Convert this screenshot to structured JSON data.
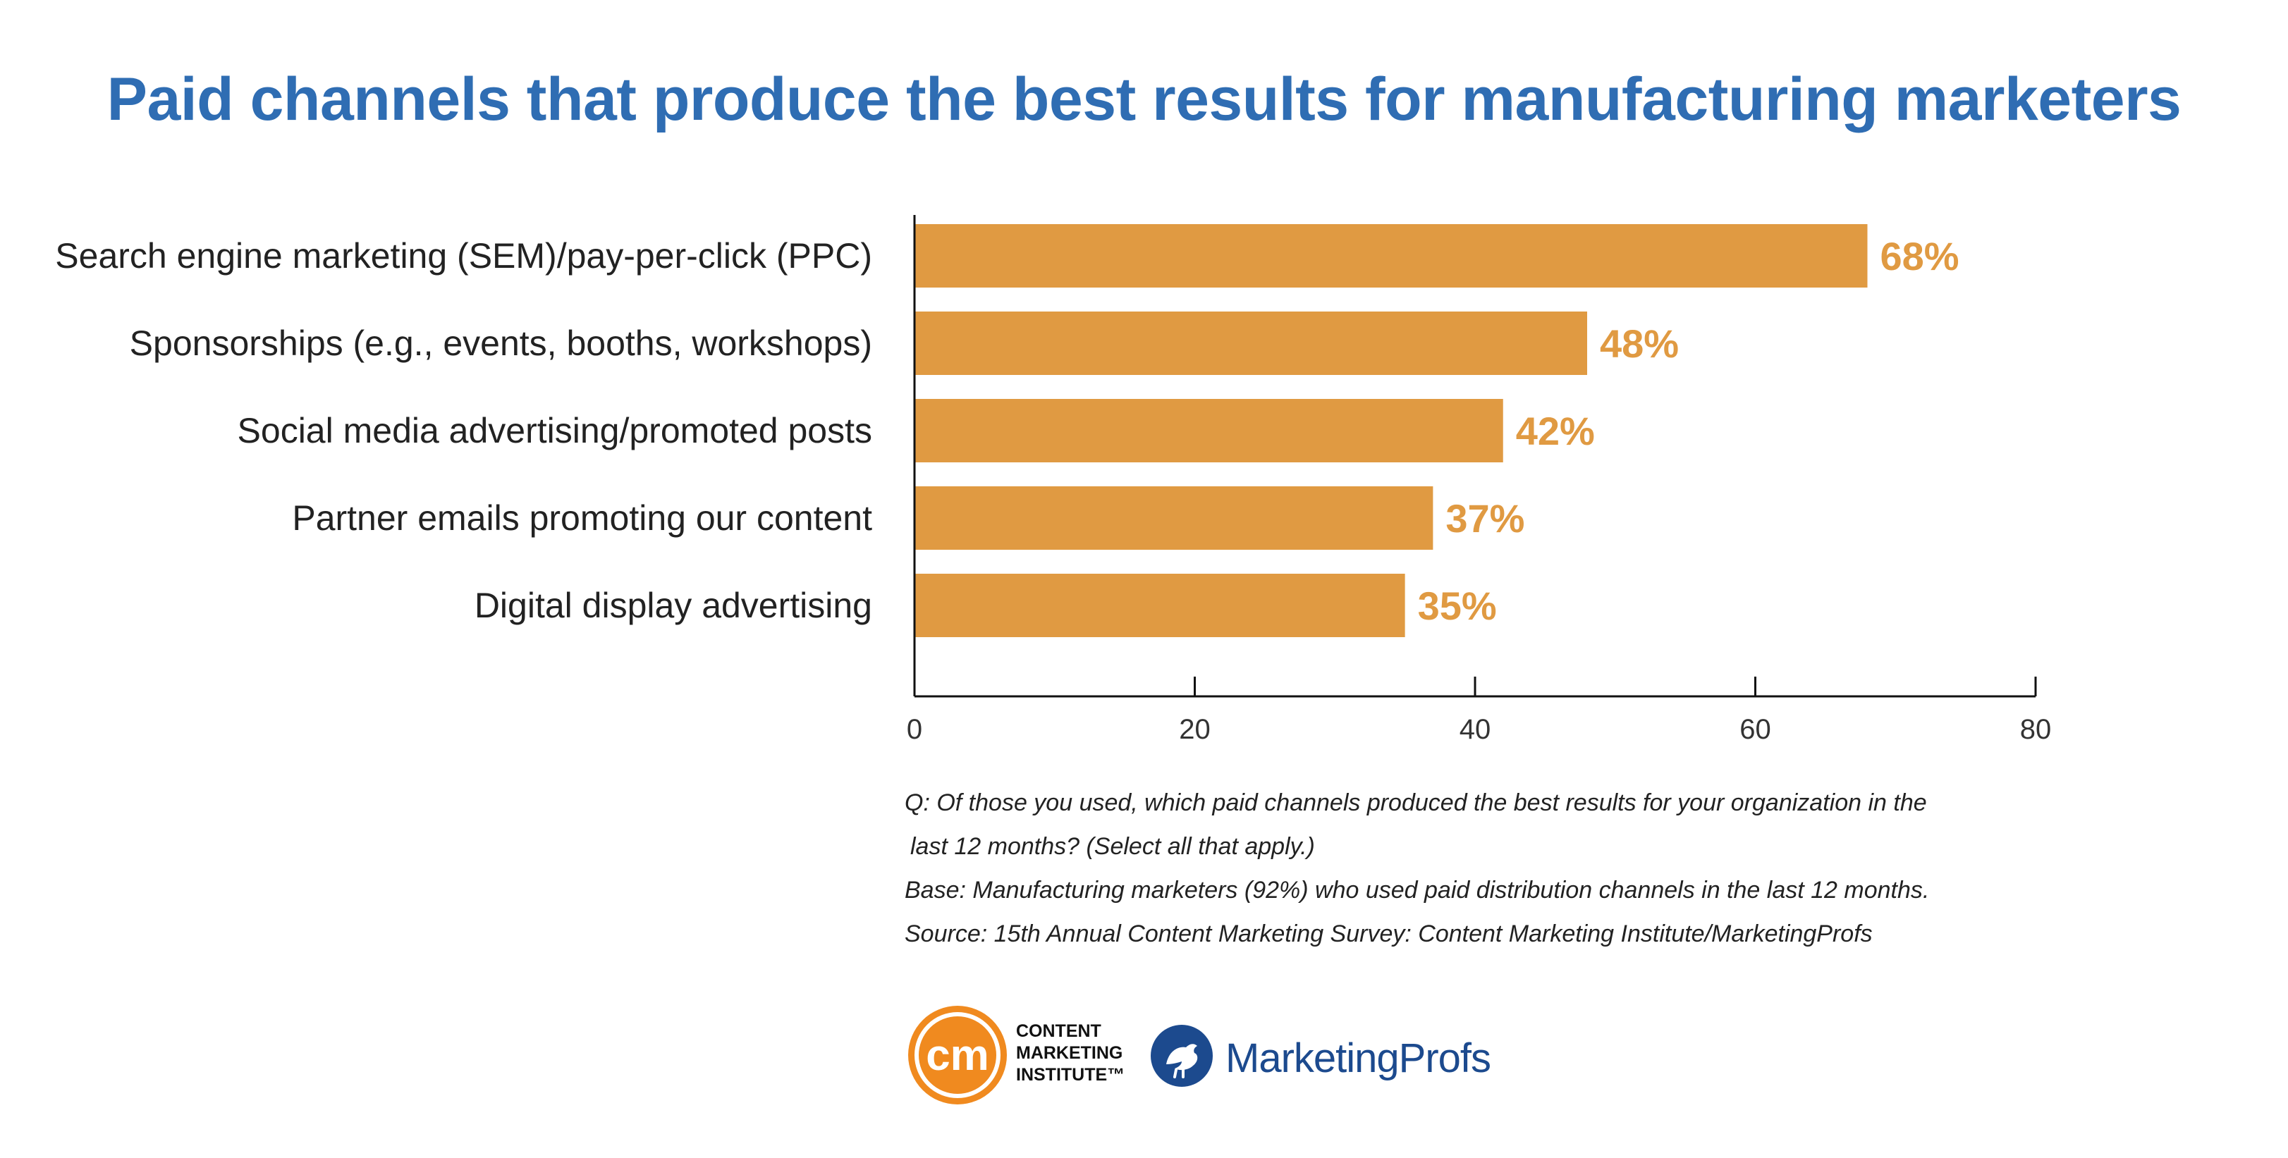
{
  "title": "Paid channels that produce the best results for manufacturing marketers",
  "chart_data": {
    "type": "bar",
    "orientation": "horizontal",
    "categories": [
      "Search engine marketing (SEM)/pay-per-click (PPC)",
      "Sponsorships (e.g., events, booths, workshops)",
      "Social media advertising/promoted posts",
      "Partner emails promoting our content",
      "Digital display advertising"
    ],
    "values": [
      68,
      48,
      42,
      37,
      35
    ],
    "value_labels": [
      "68%",
      "48%",
      "42%",
      "37%",
      "35%"
    ],
    "xlim": [
      0,
      80
    ],
    "xticks": [
      0,
      20,
      40,
      60,
      80
    ],
    "xtick_labels": [
      "0",
      "20",
      "40",
      "60",
      "80"
    ],
    "bar_color": "#e09a42",
    "value_label_color": "#e09a42",
    "grid": false,
    "legend": "none"
  },
  "notes": {
    "question_line1": "Q: Of those you used, which paid channels produced the best results for your organization in the",
    "question_line2": "last 12 months? (Select all that apply.)",
    "base": "Base: Manufacturing marketers (92%) who used paid distribution channels in the last 12 months.",
    "source": "Source: 15th Annual Content Marketing Survey: Content Marketing Institute/MarketingProfs"
  },
  "logos": {
    "cmi_mark": "cm",
    "cmi_name": "CONTENT\nMARKETING\nINSTITUTE™",
    "mp_name": "MarketingProfs",
    "cmi_icon": "cmi-logo-icon",
    "mp_icon": "marketingprofs-rooster-icon"
  },
  "colors": {
    "title": "#2f6db3",
    "cmi_orange": "#f08a1f",
    "mp_blue": "#1c4a8e"
  }
}
